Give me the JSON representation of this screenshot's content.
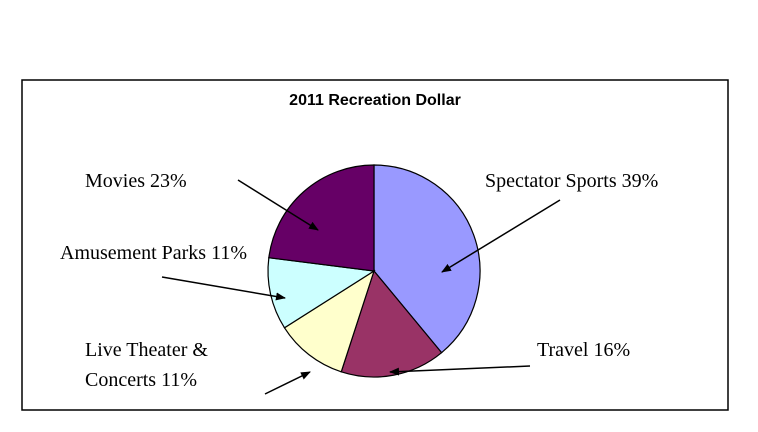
{
  "chart_data": {
    "type": "pie",
    "title": "2011 Recreation Dollar",
    "categories": [
      "Spectator Sports",
      "Travel",
      "Live Theater & Concerts",
      "Amusement Parks",
      "Movies"
    ],
    "values": [
      39,
      16,
      11,
      11,
      23
    ],
    "value_labels": [
      "39%",
      "16%",
      "11%",
      "11%",
      "23%"
    ],
    "colors": [
      "#9999ff",
      "#993366",
      "#ffffcc",
      "#ccffff",
      "#660066"
    ]
  }
}
